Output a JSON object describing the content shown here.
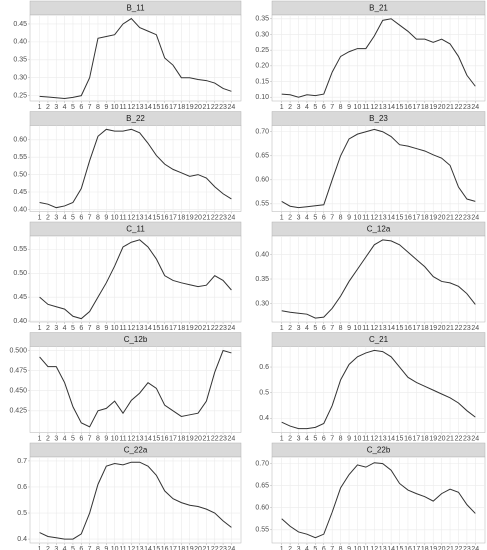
{
  "chart_data": [
    {
      "type": "line",
      "title": "B_11",
      "color": "#333333",
      "grid": true,
      "x": [
        1,
        2,
        3,
        4,
        5,
        6,
        7,
        8,
        9,
        10,
        11,
        12,
        13,
        14,
        15,
        16,
        17,
        18,
        19,
        20,
        21,
        22,
        23,
        24
      ],
      "values": [
        0.248,
        0.246,
        0.244,
        0.242,
        0.245,
        0.25,
        0.3,
        0.41,
        0.415,
        0.42,
        0.45,
        0.465,
        0.44,
        0.43,
        0.42,
        0.355,
        0.335,
        0.3,
        0.3,
        0.295,
        0.292,
        0.285,
        0.27,
        0.262
      ],
      "xlim": [
        -0.15,
        25.15
      ],
      "xticks": [
        1,
        2,
        3,
        4,
        5,
        6,
        7,
        8,
        9,
        10,
        11,
        12,
        13,
        14,
        15,
        16,
        17,
        18,
        19,
        20,
        21,
        22,
        23,
        24
      ],
      "ylim": [
        0.235,
        0.475
      ],
      "yticks": [
        {
          "value": 0.25,
          "label": "0.25"
        },
        {
          "value": 0.3,
          "label": "0.30"
        },
        {
          "value": 0.35,
          "label": "0.35"
        },
        {
          "value": 0.4,
          "label": "0.40"
        },
        {
          "value": 0.45,
          "label": "0.45"
        }
      ]
    },
    {
      "type": "line",
      "title": "B_21",
      "color": "#333333",
      "grid": true,
      "x": [
        1,
        2,
        3,
        4,
        5,
        6,
        7,
        8,
        9,
        10,
        11,
        12,
        13,
        14,
        15,
        16,
        17,
        18,
        19,
        20,
        21,
        22,
        23,
        24
      ],
      "values": [
        0.11,
        0.108,
        0.1,
        0.108,
        0.105,
        0.11,
        0.18,
        0.23,
        0.245,
        0.255,
        0.255,
        0.295,
        0.345,
        0.35,
        0.33,
        0.31,
        0.285,
        0.285,
        0.275,
        0.285,
        0.27,
        0.23,
        0.17,
        0.135
      ],
      "xlim": [
        -0.15,
        25.15
      ],
      "xticks": [
        1,
        2,
        3,
        4,
        5,
        6,
        7,
        8,
        9,
        10,
        11,
        12,
        13,
        14,
        15,
        16,
        17,
        18,
        19,
        20,
        21,
        22,
        23,
        24
      ],
      "ylim": [
        0.088,
        0.362
      ],
      "yticks": [
        {
          "value": 0.1,
          "label": "0.10"
        },
        0.15,
        {
          "value": 0.2,
          "label": "0.20"
        },
        0.25,
        {
          "value": 0.3,
          "label": "0.30"
        },
        0.35
      ]
    },
    {
      "type": "line",
      "title": "B_22",
      "color": "#333333",
      "grid": true,
      "x": [
        1,
        2,
        3,
        4,
        5,
        6,
        7,
        8,
        9,
        10,
        11,
        12,
        13,
        14,
        15,
        16,
        17,
        18,
        19,
        20,
        21,
        22,
        23,
        24
      ],
      "values": [
        0.42,
        0.415,
        0.405,
        0.41,
        0.42,
        0.46,
        0.54,
        0.61,
        0.63,
        0.625,
        0.625,
        0.63,
        0.62,
        0.59,
        0.555,
        0.53,
        0.515,
        0.505,
        0.495,
        0.5,
        0.49,
        0.465,
        0.445,
        0.43
      ],
      "xlim": [
        -0.15,
        25.15
      ],
      "xticks": [
        1,
        2,
        3,
        4,
        5,
        6,
        7,
        8,
        9,
        10,
        11,
        12,
        13,
        14,
        15,
        16,
        17,
        18,
        19,
        20,
        21,
        22,
        23,
        24
      ],
      "ylim": [
        0.394,
        0.641
      ],
      "yticks": [
        {
          "value": 0.4,
          "label": "0.40"
        },
        0.45,
        {
          "value": 0.5,
          "label": "0.50"
        },
        0.55,
        {
          "value": 0.6,
          "label": "0.60"
        }
      ]
    },
    {
      "type": "line",
      "title": "B_23",
      "color": "#333333",
      "grid": true,
      "x": [
        1,
        2,
        3,
        4,
        5,
        6,
        7,
        8,
        9,
        10,
        11,
        12,
        13,
        14,
        15,
        16,
        17,
        18,
        19,
        20,
        21,
        22,
        23,
        24
      ],
      "values": [
        0.555,
        0.545,
        0.542,
        0.544,
        0.546,
        0.548,
        0.6,
        0.65,
        0.685,
        0.695,
        0.7,
        0.705,
        0.7,
        0.69,
        0.673,
        0.67,
        0.665,
        0.66,
        0.652,
        0.645,
        0.63,
        0.585,
        0.56,
        0.555
      ],
      "xlim": [
        -0.15,
        25.15
      ],
      "xticks": [
        1,
        2,
        3,
        4,
        5,
        6,
        7,
        8,
        9,
        10,
        11,
        12,
        13,
        14,
        15,
        16,
        17,
        18,
        19,
        20,
        21,
        22,
        23,
        24
      ],
      "ylim": [
        0.534,
        0.713
      ],
      "yticks": [
        0.55,
        {
          "value": 0.6,
          "label": "0.60"
        },
        0.65,
        {
          "value": 0.7,
          "label": "0.70"
        }
      ]
    },
    {
      "type": "line",
      "title": "C_11",
      "color": "#333333",
      "grid": true,
      "x": [
        1,
        2,
        3,
        4,
        5,
        6,
        7,
        8,
        9,
        10,
        11,
        12,
        13,
        14,
        15,
        16,
        17,
        18,
        19,
        20,
        21,
        22,
        23,
        24
      ],
      "values": [
        0.45,
        0.435,
        0.43,
        0.425,
        0.41,
        0.405,
        0.42,
        0.45,
        0.48,
        0.515,
        0.555,
        0.565,
        0.57,
        0.555,
        0.53,
        0.495,
        0.485,
        0.48,
        0.476,
        0.472,
        0.475,
        0.495,
        0.485,
        0.465
      ],
      "xlim": [
        -0.15,
        25.15
      ],
      "xticks": [
        1,
        2,
        3,
        4,
        5,
        6,
        7,
        8,
        9,
        10,
        11,
        12,
        13,
        14,
        15,
        16,
        17,
        18,
        19,
        20,
        21,
        22,
        23,
        24
      ],
      "ylim": [
        0.398,
        0.578
      ],
      "yticks": [
        {
          "value": 0.4,
          "label": "0.40"
        },
        0.45,
        {
          "value": 0.5,
          "label": "0.50"
        },
        0.55
      ]
    },
    {
      "type": "line",
      "title": "C_12a",
      "color": "#333333",
      "grid": true,
      "x": [
        1,
        2,
        3,
        4,
        5,
        6,
        7,
        8,
        9,
        10,
        11,
        12,
        13,
        14,
        15,
        16,
        17,
        18,
        19,
        20,
        21,
        22,
        23,
        24
      ],
      "values": [
        0.285,
        0.282,
        0.28,
        0.278,
        0.27,
        0.272,
        0.29,
        0.315,
        0.345,
        0.37,
        0.395,
        0.42,
        0.43,
        0.428,
        0.42,
        0.405,
        0.39,
        0.375,
        0.355,
        0.345,
        0.342,
        0.335,
        0.32,
        0.298
      ],
      "xlim": [
        -0.15,
        25.15
      ],
      "xticks": [
        1,
        2,
        3,
        4,
        5,
        6,
        7,
        8,
        9,
        10,
        11,
        12,
        13,
        14,
        15,
        16,
        17,
        18,
        19,
        20,
        21,
        22,
        23,
        24
      ],
      "ylim": [
        0.262,
        0.438
      ],
      "yticks": [
        {
          "value": 0.3,
          "label": "0.30"
        },
        0.35,
        {
          "value": 0.4,
          "label": "0.40"
        }
      ]
    },
    {
      "type": "line",
      "title": "C_12b",
      "color": "#333333",
      "grid": true,
      "x": [
        1,
        2,
        3,
        4,
        5,
        6,
        7,
        8,
        9,
        10,
        11,
        12,
        13,
        14,
        15,
        16,
        17,
        18,
        19,
        20,
        21,
        22,
        23,
        24
      ],
      "values": [
        0.492,
        0.48,
        0.48,
        0.46,
        0.43,
        0.41,
        0.405,
        0.425,
        0.428,
        0.437,
        0.422,
        0.438,
        0.447,
        0.46,
        0.453,
        0.432,
        0.425,
        0.418,
        0.42,
        0.422,
        0.437,
        0.473,
        0.5,
        0.497
      ],
      "xlim": [
        -0.15,
        25.15
      ],
      "xticks": [
        1,
        2,
        3,
        4,
        5,
        6,
        7,
        8,
        9,
        10,
        11,
        12,
        13,
        14,
        15,
        16,
        17,
        18,
        19,
        20,
        21,
        22,
        23,
        24
      ],
      "ylim": [
        0.398,
        0.505
      ],
      "yticks": [
        {
          "value": 0.425,
          "label": "0.425"
        },
        {
          "value": 0.45,
          "label": "0.450"
        },
        {
          "value": 0.475,
          "label": "0.475"
        },
        {
          "value": 0.5,
          "label": "0.500"
        }
      ]
    },
    {
      "type": "line",
      "title": "C_21",
      "color": "#333333",
      "grid": true,
      "x": [
        1,
        2,
        3,
        4,
        5,
        6,
        7,
        8,
        9,
        10,
        11,
        12,
        13,
        14,
        15,
        16,
        17,
        18,
        19,
        20,
        21,
        22,
        23,
        24
      ],
      "values": [
        0.385,
        0.37,
        0.36,
        0.36,
        0.365,
        0.38,
        0.45,
        0.55,
        0.61,
        0.64,
        0.655,
        0.665,
        0.66,
        0.64,
        0.6,
        0.56,
        0.54,
        0.525,
        0.51,
        0.495,
        0.48,
        0.46,
        0.43,
        0.405
      ],
      "xlim": [
        -0.15,
        25.15
      ],
      "xticks": [
        1,
        2,
        3,
        4,
        5,
        6,
        7,
        8,
        9,
        10,
        11,
        12,
        13,
        14,
        15,
        16,
        17,
        18,
        19,
        20,
        21,
        22,
        23,
        24
      ],
      "ylim": [
        0.345,
        0.68
      ],
      "yticks": [
        0.4,
        0.5,
        0.6
      ]
    },
    {
      "type": "line",
      "title": "C_22a",
      "color": "#333333",
      "grid": true,
      "x": [
        1,
        2,
        3,
        4,
        5,
        6,
        7,
        8,
        9,
        10,
        11,
        12,
        13,
        14,
        15,
        16,
        17,
        18,
        19,
        20,
        21,
        22,
        23,
        24
      ],
      "values": [
        0.425,
        0.41,
        0.405,
        0.4,
        0.4,
        0.42,
        0.5,
        0.61,
        0.68,
        0.69,
        0.685,
        0.695,
        0.695,
        0.68,
        0.645,
        0.585,
        0.555,
        0.54,
        0.53,
        0.525,
        0.515,
        0.5,
        0.47,
        0.445
      ],
      "xlim": [
        -0.15,
        25.15
      ],
      "xticks": [
        1,
        2,
        3,
        4,
        5,
        6,
        7,
        8,
        9,
        10,
        11,
        12,
        13,
        14,
        15,
        16,
        17,
        18,
        19,
        20,
        21,
        22,
        23,
        24
      ],
      "ylim": [
        0.385,
        0.715
      ],
      "yticks": [
        0.4,
        0.5,
        0.6,
        0.7
      ]
    },
    {
      "type": "line",
      "title": "C_22b",
      "color": "#333333",
      "grid": true,
      "x": [
        1,
        2,
        3,
        4,
        5,
        6,
        7,
        8,
        9,
        10,
        11,
        12,
        13,
        14,
        15,
        16,
        17,
        18,
        19,
        20,
        21,
        22,
        23,
        24
      ],
      "values": [
        0.575,
        0.558,
        0.545,
        0.54,
        0.532,
        0.54,
        0.59,
        0.645,
        0.675,
        0.697,
        0.692,
        0.702,
        0.7,
        0.685,
        0.655,
        0.64,
        0.632,
        0.625,
        0.615,
        0.632,
        0.642,
        0.635,
        0.607,
        0.587
      ],
      "xlim": [
        -0.15,
        25.15
      ],
      "xticks": [
        1,
        2,
        3,
        4,
        5,
        6,
        7,
        8,
        9,
        10,
        11,
        12,
        13,
        14,
        15,
        16,
        17,
        18,
        19,
        20,
        21,
        22,
        23,
        24
      ],
      "ylim": [
        0.52,
        0.715
      ],
      "yticks": [
        0.55,
        {
          "value": 0.6,
          "label": "0.60"
        },
        0.65,
        {
          "value": 0.7,
          "label": "0.70"
        }
      ]
    }
  ]
}
